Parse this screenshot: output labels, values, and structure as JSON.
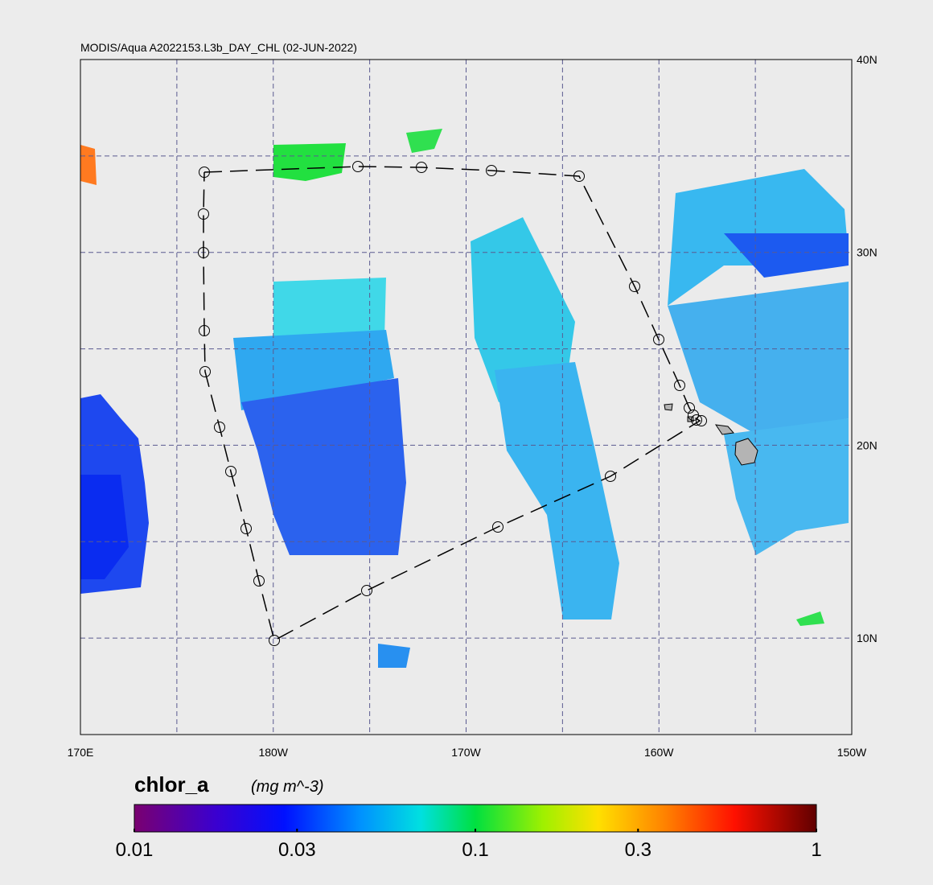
{
  "map": {
    "title": "MODIS/Aqua A2022153.L3b_DAY_CHL (02-JUN-2022)",
    "xlim": [
      170,
      210
    ],
    "ylim": [
      5,
      40
    ],
    "xticks": [
      {
        "value": 170,
        "label": "170E"
      },
      {
        "value": 180,
        "label": "180W"
      },
      {
        "value": 190,
        "label": "170W"
      },
      {
        "value": 200,
        "label": "160W"
      },
      {
        "value": 210,
        "label": "150W"
      }
    ],
    "yticks": [
      {
        "value": 10,
        "label": "10N"
      },
      {
        "value": 20,
        "label": "20N"
      },
      {
        "value": 30,
        "label": "30N"
      },
      {
        "value": 40,
        "label": "40N"
      }
    ],
    "xgrid": [
      175,
      180,
      185,
      190,
      195,
      200,
      205
    ],
    "ygrid": [
      10,
      15,
      20,
      25,
      30,
      35
    ],
    "colorbar": {
      "variable": "chlor_a",
      "units": "(mg m^-3)",
      "log": true,
      "lim": [
        0.01,
        1
      ],
      "ticks": [
        0.01,
        0.03,
        0.1,
        0.3,
        1
      ]
    }
  }
}
